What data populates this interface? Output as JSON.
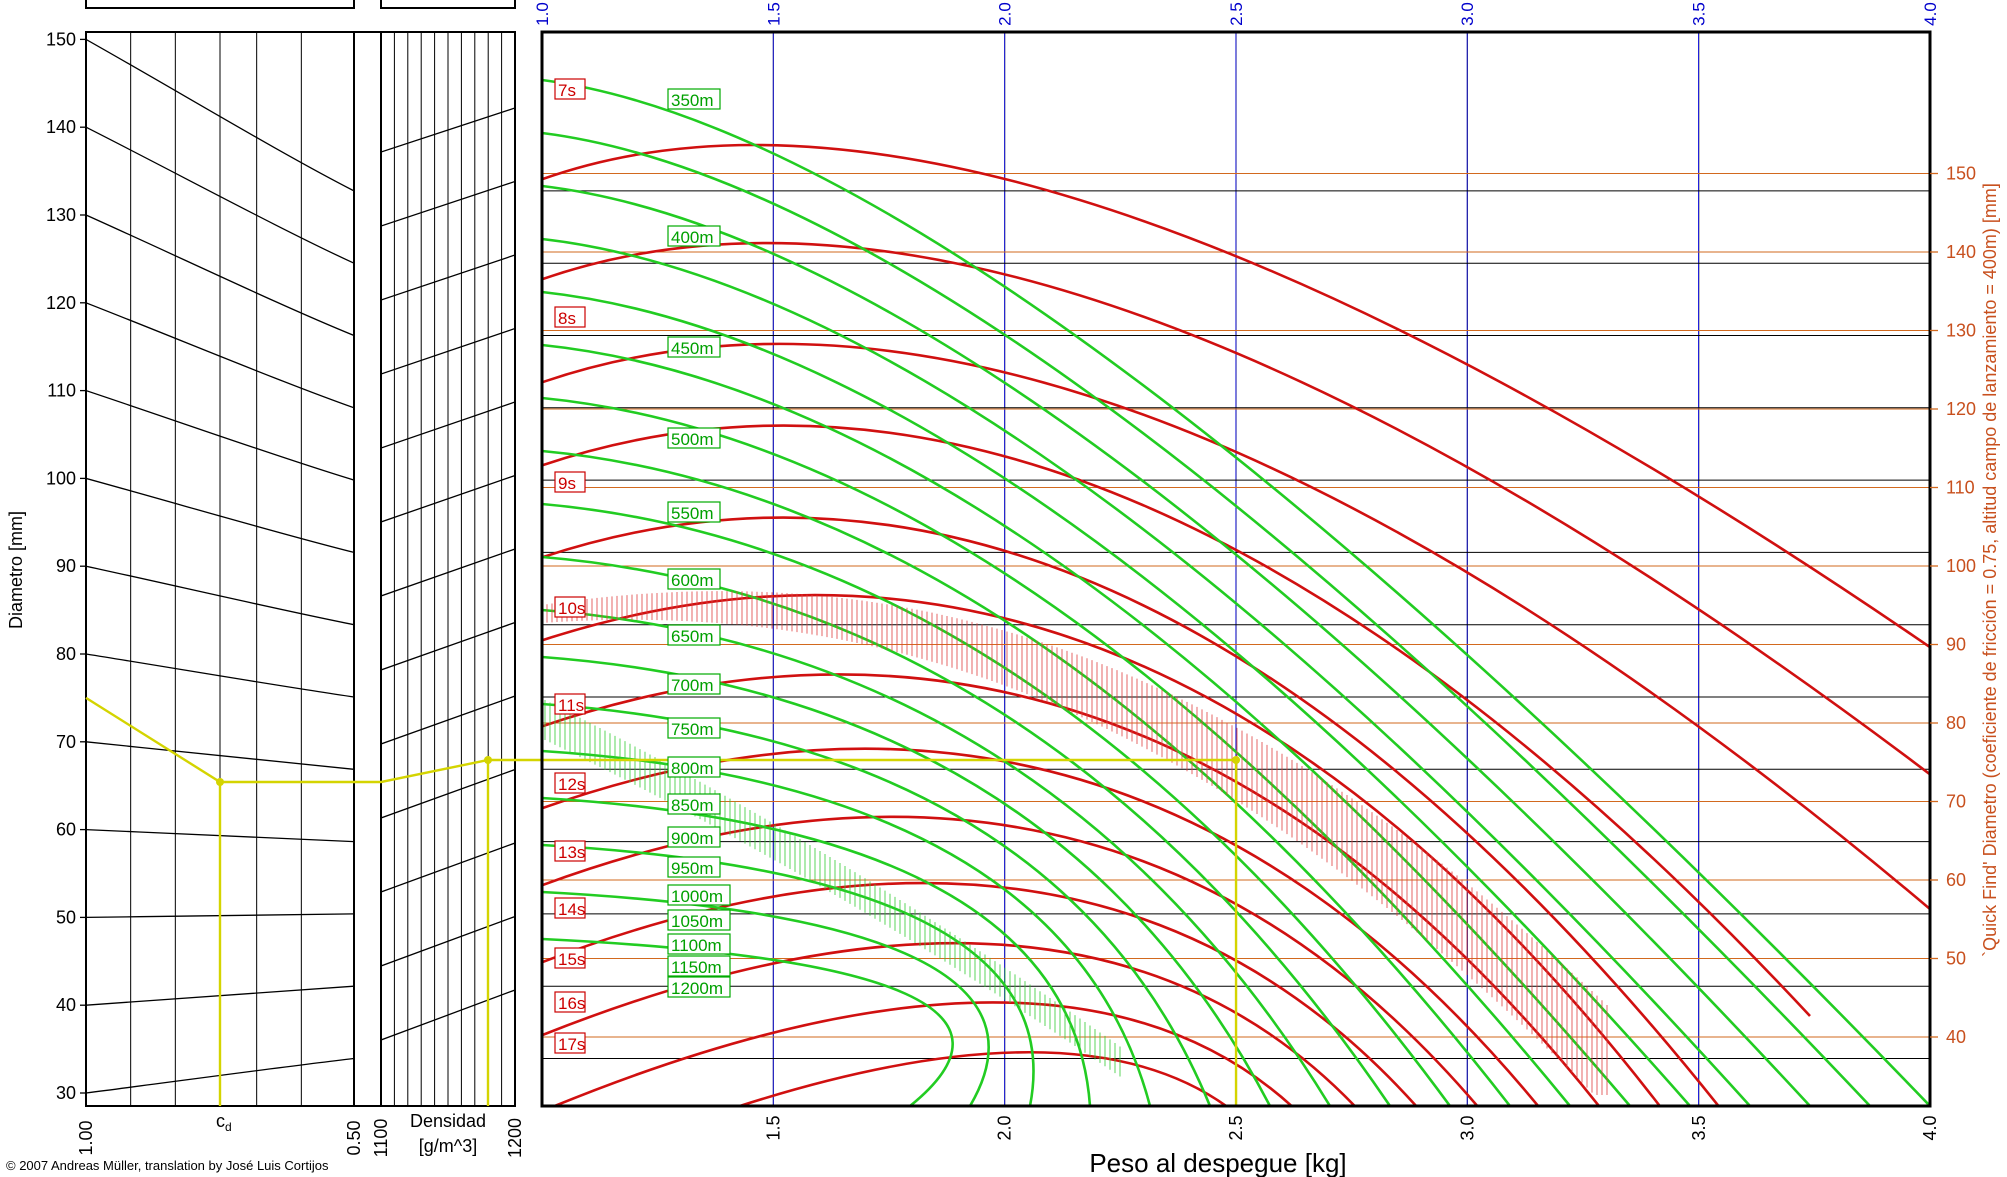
{
  "chart_data": {
    "type": "nomogram",
    "left_axis": {
      "label": "Diametro [mm]",
      "ticks": [
        30,
        40,
        50,
        60,
        70,
        80,
        90,
        100,
        110,
        120,
        130,
        140,
        150
      ],
      "range": [
        28,
        150
      ]
    },
    "cd_scale": {
      "label": "c",
      "sub": "d",
      "tick_left": "1.00",
      "tick_right": "0.50"
    },
    "density_scale": {
      "label1": "Densidad",
      "label2": "[g/m^3]",
      "tick_left": "1100",
      "tick_right": "1200"
    },
    "bottom_axis": {
      "label": "Peso al despegue [kg]",
      "ticks": [
        "1.5",
        "2.0",
        "2.5",
        "3.0",
        "3.5",
        "4.0"
      ],
      "range": [
        1.0,
        4.0
      ]
    },
    "top_axis": {
      "ticks": [
        "1.0",
        "1.5",
        "2.0",
        "2.5",
        "3.0",
        "3.5",
        "4.0"
      ]
    },
    "right_axis": {
      "label": "`Quick Find' Diametro (coeficiente de fricción = 0.75, altitud campo de lanzamiento = 400m) [mm]",
      "ticks": [
        40,
        50,
        60,
        70,
        80,
        90,
        100,
        110,
        120,
        130,
        140,
        150
      ]
    },
    "time_labels": [
      "7s",
      "8s",
      "9s",
      "10s",
      "11s",
      "12s",
      "13s",
      "14s",
      "15s",
      "16s",
      "17s"
    ],
    "altitude_labels": [
      "350m",
      "400m",
      "450m",
      "500m",
      "550m",
      "600m",
      "650m",
      "700m",
      "750m",
      "800m",
      "850m",
      "900m",
      "950m",
      "1000m",
      "1050m",
      "1100m",
      "1150m",
      "1200m"
    ],
    "example_path": {
      "diameter_start": 75,
      "cd_value": 0.75,
      "weight": 2.5
    },
    "copyright": "© 2007 Andreas Müller, translation by José Luis Cortijos"
  }
}
